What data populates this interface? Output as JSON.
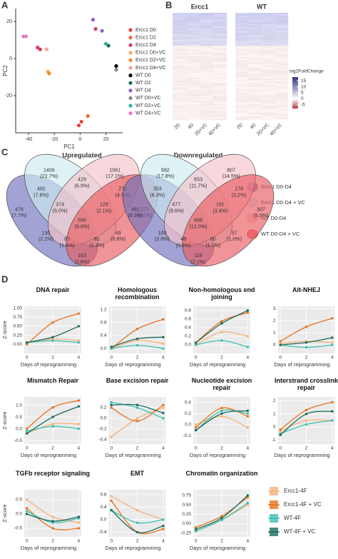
{
  "panel_labels": [
    "A",
    "B",
    "C",
    "D"
  ],
  "chart_data": [
    {
      "type": "scatter",
      "xlabel": "PC1",
      "ylabel": "PC2",
      "xlim": [
        -50,
        33
      ],
      "ylim": [
        -40,
        27
      ],
      "xticks": [
        -40,
        -20,
        0,
        20
      ],
      "yticks": [
        -20,
        0,
        20
      ],
      "series": [
        {
          "name": "Ercc1 D0",
          "color": "#e4453a",
          "x": [
            -1,
            1
          ],
          "y": [
            -36,
            -34
          ]
        },
        {
          "name": "Ercc1 D2",
          "color": "#ef6a3a",
          "x": [
            6
          ],
          "y": [
            -31
          ]
        },
        {
          "name": "Ercc1 D4",
          "color": "#d63a6a",
          "x": [
            12,
            -33,
            -31
          ],
          "y": [
            16,
            6,
            5
          ]
        },
        {
          "name": "Ercc1 D0+VC",
          "color": "#f5a86a",
          "x": [
            -25
          ],
          "y": [
            -7
          ]
        },
        {
          "name": "Ercc1 D2+VC",
          "color": "#f08a2c",
          "x": [
            -24
          ],
          "y": [
            -8
          ]
        },
        {
          "name": "Ercc1 D4+VC",
          "color": "#f4a0a0",
          "x": [
            -26
          ],
          "y": [
            5
          ]
        },
        {
          "name": "WT D0",
          "color": "#000000",
          "x": [
            28
          ],
          "y": [
            -4
          ]
        },
        {
          "name": "WT D2",
          "color": "#1a6b5c",
          "x": [
            22
          ],
          "y": [
            7
          ]
        },
        {
          "name": "WT D4",
          "color": "#8e5fc2",
          "x": [
            17,
            10
          ],
          "y": [
            15,
            21
          ]
        },
        {
          "name": "WT D0+VC",
          "color": "#888888",
          "x": [
            28
          ],
          "y": [
            -6
          ]
        },
        {
          "name": "WT D2+VC",
          "color": "#2bb3a3",
          "x": [
            20
          ],
          "y": [
            8
          ]
        },
        {
          "name": "WT D4+VC",
          "color": "#e478c8",
          "x": [
            -44,
            -42
          ],
          "y": [
            12,
            12
          ]
        }
      ]
    },
    {
      "type": "heatmap",
      "groups": [
        "Ercc1",
        "WT"
      ],
      "columns": [
        "2D",
        "4D",
        "2D+VC",
        "4D+VC"
      ],
      "colorbar_title": "log2FoldChange",
      "clim": [
        -8,
        18
      ],
      "colorbar_ticks": [
        15,
        10,
        5,
        0,
        -5
      ]
    },
    {
      "type": "venn",
      "title": "Upregulated",
      "sets": [
        {
          "name": "Ercc1 D0-D4",
          "color": "#7072bd"
        },
        {
          "name": "Ercc1 D0-D4 + VC",
          "color": "#cdebf0"
        },
        {
          "name": "WT D0-D4",
          "color": "#f5c3cb"
        },
        {
          "name": "WT D0-D4 + VC",
          "color": "#ea5a60"
        }
      ],
      "regions": [
        {
          "count": 476,
          "percent": "(7.7%)"
        },
        {
          "count": 1406,
          "percent": "(22.7%)"
        },
        {
          "count": 1061,
          "percent": "(17.1%)"
        },
        {
          "count": 373,
          "percent": "(6.0%)"
        },
        {
          "count": 482,
          "percent": "(7.8%)"
        },
        {
          "count": 429,
          "percent": "(6.9%)"
        },
        {
          "count": 276,
          "percent": "(4.5%)"
        },
        {
          "count": 374,
          "percent": "(6.0%)"
        },
        {
          "count": 129,
          "percent": "(2.1%)"
        },
        {
          "count": 130,
          "percent": "(2.1%)"
        },
        {
          "count": 595,
          "percent": "(9.6%)"
        },
        {
          "count": 49,
          "percent": "(0.8%)"
        },
        {
          "count": 87,
          "percent": "(1.4%)"
        },
        {
          "count": 81,
          "percent": "(1.3%)"
        },
        {
          "count": 163,
          "percent": "(2.6%)"
        }
      ]
    },
    {
      "type": "venn",
      "title": "Downregulated",
      "sets": [
        {
          "name": "Ercc1 D0-D4",
          "color": "#7072bd"
        },
        {
          "name": "Ercc1 D0-D4 + VC",
          "color": "#cdebf0"
        },
        {
          "name": "WT D0-D4",
          "color": "#f5c3cb"
        },
        {
          "name": "WT D0-D4 + VC",
          "color": "#ea5a60"
        }
      ],
      "regions": [
        {
          "count": 461,
          "percent": "(8.3%)"
        },
        {
          "count": 992,
          "percent": "(17.8%)"
        },
        {
          "count": 807,
          "percent": "(14.5%)"
        },
        {
          "count": 307,
          "percent": "(5.5%)"
        },
        {
          "count": 353,
          "percent": "(6.3%)"
        },
        {
          "count": 653,
          "percent": "(11.7%)"
        },
        {
          "count": 176,
          "percent": "(3.2%)"
        },
        {
          "count": 477,
          "percent": "(8.6%)"
        },
        {
          "count": 191,
          "percent": "(3.4%)"
        },
        {
          "count": 109,
          "percent": "(2.0%)"
        },
        {
          "count": 668,
          "percent": "(12.0%)"
        },
        {
          "count": 57,
          "percent": "(1.0%)"
        },
        {
          "count": 48,
          "percent": "(0.9%)"
        },
        {
          "count": 60,
          "percent": "(1.1%)"
        },
        {
          "count": 118,
          "percent": "(2.1%)"
        }
      ]
    },
    {
      "type": "line",
      "title": "DNA repair",
      "xlabel": "Days of reprogramming",
      "ylabel": "Z-score",
      "x": [
        0,
        2,
        4
      ],
      "xlim": [
        -0.2,
        4.2
      ],
      "xticks": [
        0,
        2,
        4
      ],
      "ylim": [
        -0.25,
        1.05
      ],
      "yticks": [
        {
          "value": 0,
          "label": "0.00"
        },
        {
          "value": 0.25,
          "label": "0.25"
        },
        {
          "value": 0.5,
          "label": "0.50"
        },
        {
          "value": 0.75,
          "label": "0.75"
        },
        {
          "value": 1,
          "label": "1.00"
        }
      ],
      "series": [
        {
          "name": "Ercc1-4F",
          "color": "#f6b27a",
          "values": [
            0.05,
            0.15,
            0.1
          ]
        },
        {
          "name": "Ercc1-4F + VC",
          "color": "#e8721c",
          "values": [
            0,
            0.6,
            0.85
          ]
        },
        {
          "name": "WT-4F",
          "color": "#3bbfb0",
          "values": [
            0.05,
            0.1,
            0.05
          ]
        },
        {
          "name": "WT-4F + VC",
          "color": "#1a6b5c",
          "values": [
            0.05,
            0.2,
            0.5
          ]
        }
      ]
    },
    {
      "type": "line",
      "title": "Homologous recombination",
      "xlabel": "Days of reprogramming",
      "x": [
        0,
        2,
        4
      ],
      "xlim": [
        -0.2,
        4.2
      ],
      "xticks": [
        0,
        2,
        4
      ],
      "ylim": [
        -0.15,
        1.3
      ],
      "yticks": [
        {
          "value": 0,
          "label": "0.0"
        },
        0.4,
        0.8,
        1.2
      ],
      "series": [
        {
          "name": "Ercc1-4F",
          "color": "#f6b27a",
          "values": [
            0,
            0.25,
            0.15
          ]
        },
        {
          "name": "Ercc1-4F + VC",
          "color": "#e8721c",
          "values": [
            0,
            0.6,
            0.9
          ]
        },
        {
          "name": "WT-4F",
          "color": "#3bbfb0",
          "values": [
            0,
            0.1,
            0
          ]
        },
        {
          "name": "WT-4F + VC",
          "color": "#1a6b5c",
          "values": [
            0.05,
            0.3,
            0.35
          ]
        }
      ]
    },
    {
      "type": "line",
      "title": "Non-homologous end joining",
      "xlabel": "Days of reprogramming",
      "x": [
        0,
        2,
        4
      ],
      "xlim": [
        -0.2,
        4.2
      ],
      "xticks": [
        0,
        2,
        4
      ],
      "ylim": [
        -0.2,
        0.9
      ],
      "yticks": [
        {
          "value": 0,
          "label": "0.0"
        },
        0.2,
        0.4,
        0.6,
        0.8
      ],
      "series": [
        {
          "name": "Ercc1-4F",
          "color": "#f6b27a",
          "values": [
            0,
            0.3,
            0.2
          ]
        },
        {
          "name": "Ercc1-4F + VC",
          "color": "#e8721c",
          "values": [
            0.05,
            0.55,
            0.75
          ]
        },
        {
          "name": "WT-4F",
          "color": "#3bbfb0",
          "values": [
            0,
            0.1,
            -0.05
          ]
        },
        {
          "name": "WT-4F + VC",
          "color": "#1a6b5c",
          "values": [
            0.05,
            0.5,
            0.8
          ]
        }
      ]
    },
    {
      "type": "line",
      "title": "Alt-NHEJ",
      "xlabel": "Days of reprogramming",
      "x": [
        0,
        2,
        4
      ],
      "xlim": [
        -0.2,
        4.2
      ],
      "xticks": [
        0,
        2,
        4
      ],
      "ylim": [
        -0.7,
        3.2
      ],
      "yticks": [
        0,
        1,
        2,
        3
      ],
      "series": [
        {
          "name": "Ercc1-4F",
          "color": "#f6b27a",
          "values": [
            0.1,
            0.3,
            0.2
          ]
        },
        {
          "name": "Ercc1-4F + VC",
          "color": "#e8721c",
          "values": [
            0.3,
            1.5,
            2.2
          ]
        },
        {
          "name": "WT-4F",
          "color": "#3bbfb0",
          "values": [
            0,
            -0.2,
            0
          ]
        },
        {
          "name": "WT-4F + VC",
          "color": "#1a6b5c",
          "values": [
            0,
            0.2,
            0.6
          ]
        }
      ]
    },
    {
      "type": "line",
      "title": "Mismatch Repair",
      "xlabel": "Days of reprogramming",
      "ylabel": "Z-score",
      "x": [
        0,
        2,
        4
      ],
      "xlim": [
        -0.2,
        4.2
      ],
      "xticks": [
        0,
        2,
        4
      ],
      "ylim": [
        -0.65,
        1.35
      ],
      "yticks": [
        -0.5,
        {
          "value": 0,
          "label": "0.0"
        },
        0.5,
        {
          "value": 1,
          "label": "1.0"
        }
      ],
      "series": [
        {
          "name": "Ercc1-4F",
          "color": "#f6b27a",
          "values": [
            -0.2,
            0.2,
            0.2
          ]
        },
        {
          "name": "Ercc1-4F + VC",
          "color": "#e8721c",
          "values": [
            0,
            0.9,
            1.2
          ]
        },
        {
          "name": "WT-4F",
          "color": "#3bbfb0",
          "values": [
            -0.1,
            0.1,
            0
          ]
        },
        {
          "name": "WT-4F + VC",
          "color": "#1a6b5c",
          "values": [
            -0.2,
            0.5,
            0.95
          ]
        }
      ]
    },
    {
      "type": "line",
      "title": "Base excision repair",
      "xlabel": "Days of reprogramming",
      "x": [
        0,
        2,
        4
      ],
      "xlim": [
        -0.2,
        4.2
      ],
      "xticks": [
        0,
        2,
        4
      ],
      "ylim": [
        -0.48,
        0.4
      ],
      "yticks": [
        -0.4,
        -0.2,
        {
          "value": 0,
          "label": "0.0"
        },
        0.2
      ],
      "series": [
        {
          "name": "Ercc1-4F",
          "color": "#f6b27a",
          "values": [
            -0.35,
            0,
            0.2
          ]
        },
        {
          "name": "Ercc1-4F + VC",
          "color": "#e8721c",
          "values": [
            0.2,
            -0.05,
            0.25
          ]
        },
        {
          "name": "WT-4F",
          "color": "#3bbfb0",
          "values": [
            0.3,
            0.2,
            0
          ]
        },
        {
          "name": "WT-4F + VC",
          "color": "#1a6b5c",
          "values": [
            0.25,
            0.25,
            0.1
          ]
        }
      ]
    },
    {
      "type": "line",
      "title": "Nucleotide excision repair",
      "xlabel": "Days of reprogramming",
      "x": [
        0,
        2,
        4
      ],
      "xlim": [
        -0.2,
        4.2
      ],
      "xticks": [
        0,
        2,
        4
      ],
      "ylim": [
        -0.35,
        0.5
      ],
      "yticks": [
        -0.2,
        {
          "value": 0,
          "label": "0.0"
        },
        0.2,
        0.4
      ],
      "series": [
        {
          "name": "Ercc1-4F",
          "color": "#f6b27a",
          "values": [
            0,
            0.15,
            -0.05
          ]
        },
        {
          "name": "Ercc1-4F + VC",
          "color": "#e8721c",
          "values": [
            -0.05,
            0.3,
            0.15
          ]
        },
        {
          "name": "WT-4F",
          "color": "#3bbfb0",
          "values": [
            -0.1,
            0.25,
            0.2
          ]
        },
        {
          "name": "WT-4F + VC",
          "color": "#1a6b5c",
          "values": [
            -0.1,
            0.2,
            0.25
          ]
        }
      ]
    },
    {
      "type": "line",
      "title": "Interstrand crosslink repair",
      "xlabel": "Days of reprogramming",
      "x": [
        0,
        2,
        4
      ],
      "xlim": [
        -0.2,
        4.2
      ],
      "xticks": [
        0,
        2,
        4
      ],
      "ylim": [
        -1.3,
        2.3
      ],
      "yticks": [
        -1,
        0,
        1,
        2
      ],
      "series": [
        {
          "name": "Ercc1-4F",
          "color": "#f6b27a",
          "values": [
            -0.3,
            0.5,
            0.5
          ]
        },
        {
          "name": "Ercc1-4F + VC",
          "color": "#e8721c",
          "values": [
            -0.2,
            1.3,
            1.9
          ]
        },
        {
          "name": "WT-4F",
          "color": "#3bbfb0",
          "values": [
            -0.5,
            0.2,
            0.5
          ]
        },
        {
          "name": "WT-4F + VC",
          "color": "#1a6b5c",
          "values": [
            -0.6,
            1,
            1.2
          ]
        }
      ]
    },
    {
      "type": "line",
      "title": "TGFb receptor signaling",
      "xlabel": "Days of reprogramming",
      "ylabel": "Z-score",
      "x": [
        0,
        2,
        4
      ],
      "xlim": [
        -0.2,
        4.2
      ],
      "xticks": [
        0,
        2,
        4
      ],
      "ylim": [
        -0.8,
        0.85
      ],
      "yticks": [
        -0.5,
        {
          "value": 0,
          "label": "0.0"
        },
        0.5
      ],
      "series": [
        {
          "name": "Ercc1-4F",
          "color": "#f6b27a",
          "values": [
            0.5,
            -0.1,
            -0.3
          ]
        },
        {
          "name": "Ercc1-4F + VC",
          "color": "#e8721c",
          "values": [
            0.2,
            -0.5,
            -0.5
          ]
        },
        {
          "name": "WT-4F",
          "color": "#3bbfb0",
          "values": [
            0.1,
            -0.3,
            -0.15
          ]
        },
        {
          "name": "WT-4F + VC",
          "color": "#1a6b5c",
          "values": [
            0,
            -0.25,
            -0.1
          ]
        }
      ]
    },
    {
      "type": "line",
      "title": "EMT",
      "xlabel": "Days of reprogramming",
      "x": [
        0,
        2,
        4
      ],
      "xlim": [
        -0.2,
        4.2
      ],
      "xticks": [
        0,
        2,
        4
      ],
      "ylim": [
        -0.55,
        0.95
      ],
      "yticks": [
        -0.4,
        {
          "value": 0,
          "label": "0.0"
        },
        0.4,
        0.8
      ],
      "series": [
        {
          "name": "Ercc1-4F",
          "color": "#f6b27a",
          "values": [
            0.75,
            0.3,
            0
          ]
        },
        {
          "name": "Ercc1-4F + VC",
          "color": "#e8721c",
          "values": [
            0.6,
            -0.4,
            -0.3
          ]
        },
        {
          "name": "WT-4F",
          "color": "#3bbfb0",
          "values": [
            0.3,
            -0.1,
            0
          ]
        },
        {
          "name": "WT-4F + VC",
          "color": "#1a6b5c",
          "values": [
            0.3,
            -0.4,
            -0.2
          ]
        }
      ]
    },
    {
      "type": "line",
      "title": "Chromatin organization",
      "xlabel": "Days of reprogramming",
      "x": [
        0,
        2,
        4
      ],
      "xlim": [
        -0.2,
        4.2
      ],
      "xticks": [
        0,
        2,
        4
      ],
      "ylim": [
        -0.35,
        0.9
      ],
      "yticks": [
        -0.25,
        {
          "value": 0,
          "label": "0.00"
        },
        0.25,
        {
          "value": 0.5,
          "label": "0.50"
        },
        0.75
      ],
      "series": [
        {
          "name": "Ercc1-4F",
          "color": "#f6b27a",
          "values": [
            -0.2,
            0.1,
            0.5
          ]
        },
        {
          "name": "Ercc1-4F + VC",
          "color": "#e8721c",
          "values": [
            -0.1,
            0.2,
            0.7
          ]
        },
        {
          "name": "WT-4F",
          "color": "#3bbfb0",
          "values": [
            -0.2,
            0.1,
            0.55
          ]
        },
        {
          "name": "WT-4F + VC",
          "color": "#1a6b5c",
          "values": [
            -0.15,
            0.15,
            0.75
          ]
        }
      ]
    }
  ]
}
